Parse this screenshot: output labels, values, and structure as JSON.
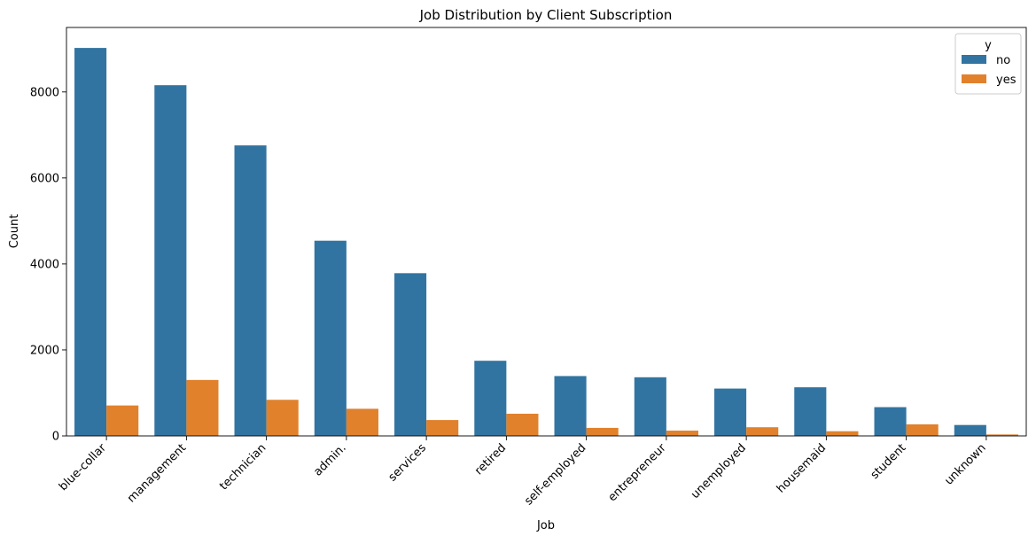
{
  "chart_data": {
    "type": "bar",
    "title": "Job Distribution by Client Subscription",
    "xlabel": "Job",
    "ylabel": "Count",
    "ylim": [
      0,
      9500
    ],
    "yticks": [
      0,
      2000,
      4000,
      6000,
      8000
    ],
    "grid": false,
    "legend": {
      "title": "y",
      "placement": "top-right"
    },
    "categories": [
      "blue-collar",
      "management",
      "technician",
      "admin.",
      "services",
      "retired",
      "self-employed",
      "entrepreneur",
      "unemployed",
      "housemaid",
      "student",
      "unknown"
    ],
    "series": [
      {
        "name": "no",
        "color": "#3274a1",
        "values": [
          9024,
          8157,
          6757,
          4540,
          3785,
          1748,
          1392,
          1364,
          1101,
          1131,
          669,
          254
        ]
      },
      {
        "name": "yes",
        "color": "#e1812c",
        "values": [
          708,
          1301,
          840,
          631,
          369,
          516,
          187,
          123,
          202,
          109,
          269,
          34
        ]
      }
    ]
  }
}
